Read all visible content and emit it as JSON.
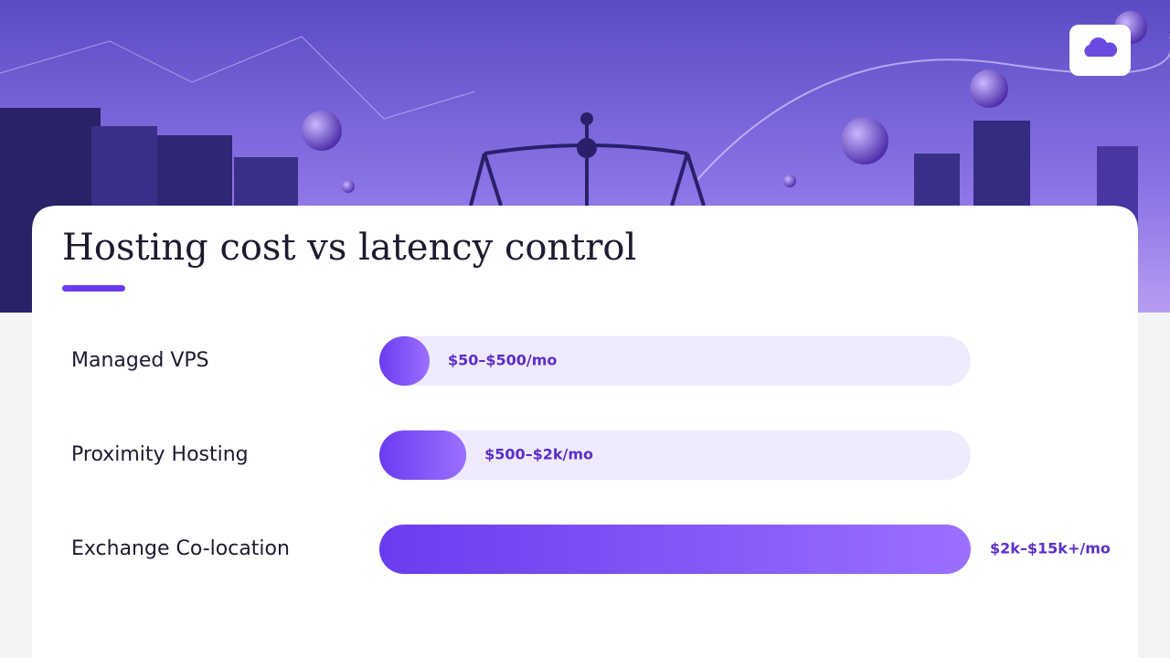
{
  "chart_data": {
    "type": "bar",
    "orientation": "horizontal",
    "title": "Hosting cost vs latency control",
    "categories": [
      "Managed VPS",
      "Proximity Hosting",
      "Exchange Co-location"
    ],
    "values": [
      8.5,
      14.7,
      100
    ],
    "value_labels": [
      "$50–$500/mo",
      "$500–$2k/mo",
      "$2k–$15k+/mo"
    ],
    "xlim": [
      0,
      100
    ],
    "color": "#7443f5"
  }
}
